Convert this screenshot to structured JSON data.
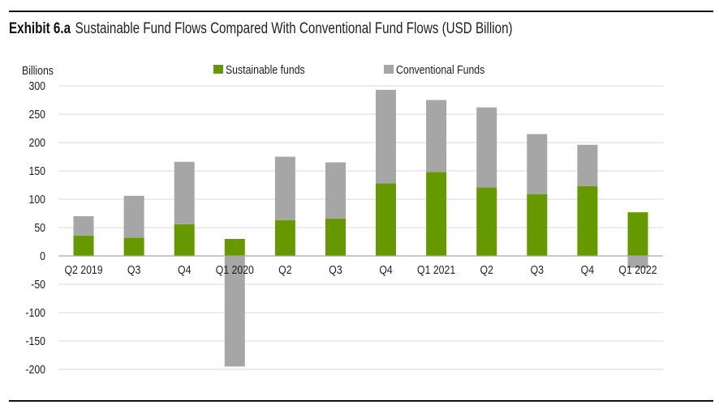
{
  "header": {
    "exhibit": "Exhibit 6.a",
    "title": "Sustainable Fund Flows Compared With Conventional Fund Flows (USD Billion)"
  },
  "colors": {
    "sustainable": "#669900",
    "conventional": "#a6a6a6",
    "grid": "#d9d9d9",
    "axis": "#a6a6a6"
  },
  "chart_data": {
    "type": "bar",
    "stacked": true,
    "title": "Sustainable Fund Flows Compared With Conventional Fund Flows (USD Billion)",
    "ylabel": "Billions",
    "xlabel": "",
    "ylim": [
      -200,
      300
    ],
    "yticks": [
      300,
      250,
      200,
      150,
      100,
      50,
      0,
      -50,
      -100,
      -150,
      -200
    ],
    "ytick_labels": [
      "300",
      "250",
      "200",
      "150",
      "100",
      "50",
      "0",
      "-50",
      "-100",
      "-150",
      "-200"
    ],
    "grid": true,
    "legend_position": "top-center",
    "categories": [
      "Q2 2019",
      "Q3",
      "Q4",
      "Q1 2020",
      "Q2",
      "Q3",
      "Q4",
      "Q1 2021",
      "Q2",
      "Q3",
      "Q4",
      "Q1 2022"
    ],
    "series": [
      {
        "name": "Sustainable funds",
        "color": "#669900",
        "values": [
          36,
          32,
          56,
          30,
          63,
          66,
          128,
          148,
          121,
          109,
          123,
          77
        ]
      },
      {
        "name": "Conventional Funds",
        "color": "#a6a6a6",
        "values": [
          34,
          74,
          110,
          -195,
          112,
          99,
          165,
          127,
          141,
          106,
          73,
          -21
        ]
      }
    ]
  }
}
